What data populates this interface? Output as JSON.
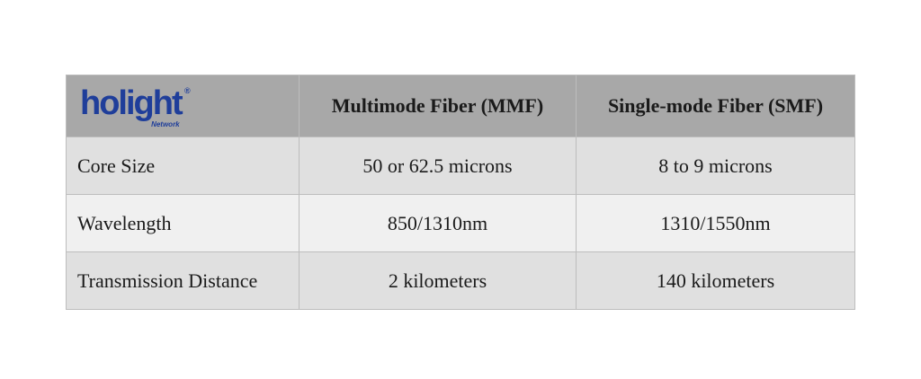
{
  "logo": {
    "text": "holight",
    "mark": "®",
    "subtext": "Network"
  },
  "table": {
    "header": [
      "Multimode Fiber (MMF)",
      "Single-mode Fiber (SMF)"
    ],
    "rows": [
      [
        "Core Size",
        "50 or 62.5 microns",
        "8 to 9 microns"
      ],
      [
        "Wavelength",
        "850/1310nm",
        "1310/1550nm"
      ],
      [
        "Transmission Distance",
        "2 kilometers",
        "140 kilometers"
      ]
    ]
  }
}
